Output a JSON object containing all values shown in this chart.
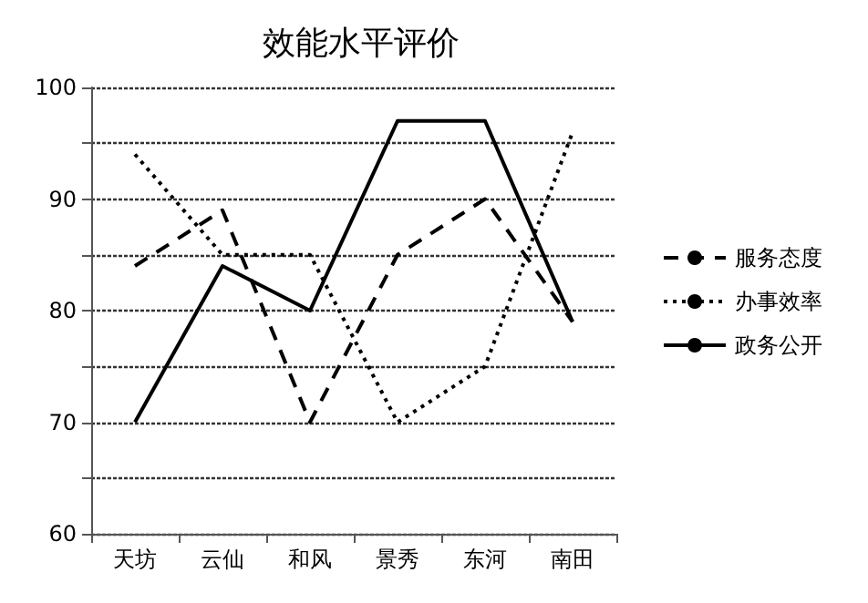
{
  "chart_data": {
    "type": "line",
    "title": "效能水平评价",
    "categories": [
      "天坊",
      "云仙",
      "和风",
      "景秀",
      "东河",
      "南田"
    ],
    "series": [
      {
        "name": "服务态度",
        "color": "#000000",
        "line_style": "dashed",
        "values": [
          84,
          89,
          70,
          85,
          90,
          79
        ]
      },
      {
        "name": "办事效率",
        "color": "#000000",
        "line_style": "dotted",
        "values": [
          94,
          85,
          85,
          70,
          75,
          96
        ]
      },
      {
        "name": "政务公开",
        "color": "#000000",
        "line_style": "solid",
        "values": [
          70,
          84,
          80,
          97,
          97,
          79
        ]
      }
    ],
    "ylim": [
      60,
      100
    ],
    "yticks": [
      60,
      {
        "value": 65,
        "label": null
      },
      70,
      {
        "value": 75,
        "label": null
      },
      80,
      {
        "value": 85,
        "label": null
      },
      90,
      {
        "value": 95,
        "label": null
      },
      100
    ],
    "grid": "y",
    "legend": "right",
    "marker": "none"
  }
}
